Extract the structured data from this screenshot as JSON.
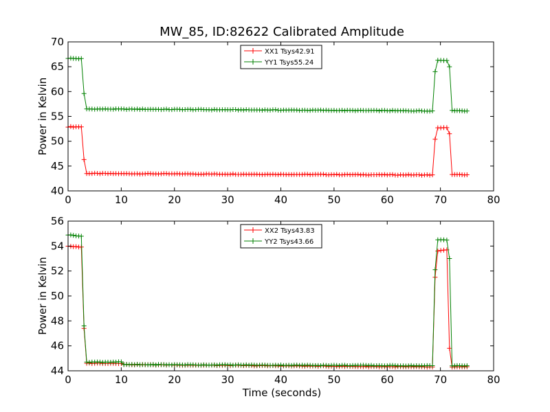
{
  "chart_data": [
    {
      "type": "line",
      "title": "MW_85, ID:82622 Calibrated Amplitude",
      "xlabel": "",
      "ylabel": "Power in Kelvin",
      "xlim": [
        0,
        80
      ],
      "ylim": [
        40,
        70
      ],
      "xticks": [
        "0",
        "10",
        "20",
        "30",
        "40",
        "50",
        "60",
        "70",
        "80"
      ],
      "yticks": [
        "40",
        "45",
        "50",
        "55",
        "60",
        "65",
        "70"
      ],
      "legend_position": "top-center",
      "series": [
        {
          "name": "XX1 Tsys42.91",
          "color": "#ff0000",
          "segments": [
            {
              "t0": 0.0,
              "t1": 2.5,
              "v0": 52.9,
              "v1": 52.9
            },
            {
              "t0": 2.5,
              "t1": 3.0,
              "v0": 52.9,
              "v1": 46.3
            },
            {
              "t0": 3.0,
              "t1": 3.5,
              "v0": 46.3,
              "v1": 43.5
            },
            {
              "t0": 3.5,
              "t1": 68.5,
              "v0": 43.5,
              "v1": 43.2
            },
            {
              "t0": 68.5,
              "t1": 69.0,
              "v0": 43.2,
              "v1": 50.4
            },
            {
              "t0": 69.0,
              "t1": 69.5,
              "v0": 50.4,
              "v1": 52.7
            },
            {
              "t0": 69.5,
              "t1": 71.2,
              "v0": 52.7,
              "v1": 52.7
            },
            {
              "t0": 71.2,
              "t1": 71.7,
              "v0": 52.7,
              "v1": 51.5
            },
            {
              "t0": 71.7,
              "t1": 72.2,
              "v0": 51.5,
              "v1": 43.3
            },
            {
              "t0": 72.2,
              "t1": 75.0,
              "v0": 43.3,
              "v1": 43.2
            }
          ]
        },
        {
          "name": "YY1 Tsys55.24",
          "color": "#008000",
          "segments": [
            {
              "t0": 0.0,
              "t1": 2.5,
              "v0": 66.7,
              "v1": 66.6
            },
            {
              "t0": 2.5,
              "t1": 3.0,
              "v0": 66.6,
              "v1": 59.6
            },
            {
              "t0": 3.0,
              "t1": 3.5,
              "v0": 59.6,
              "v1": 56.5
            },
            {
              "t0": 3.5,
              "t1": 68.5,
              "v0": 56.5,
              "v1": 56.1
            },
            {
              "t0": 68.5,
              "t1": 69.0,
              "v0": 56.1,
              "v1": 64.0
            },
            {
              "t0": 69.0,
              "t1": 69.5,
              "v0": 64.0,
              "v1": 66.3
            },
            {
              "t0": 69.5,
              "t1": 71.2,
              "v0": 66.3,
              "v1": 66.3
            },
            {
              "t0": 71.2,
              "t1": 71.7,
              "v0": 66.3,
              "v1": 65.0
            },
            {
              "t0": 71.7,
              "t1": 72.2,
              "v0": 65.0,
              "v1": 56.2
            },
            {
              "t0": 72.2,
              "t1": 75.0,
              "v0": 56.2,
              "v1": 56.1
            }
          ]
        }
      ]
    },
    {
      "type": "line",
      "title": "",
      "xlabel": "Time (seconds)",
      "ylabel": "Power in Kelvin",
      "xlim": [
        0,
        80
      ],
      "ylim": [
        44,
        56
      ],
      "xticks": [
        "0",
        "10",
        "20",
        "30",
        "40",
        "50",
        "60",
        "70",
        "80"
      ],
      "yticks": [
        "44",
        "46",
        "48",
        "50",
        "52",
        "54",
        "56"
      ],
      "legend_position": "top-center",
      "series": [
        {
          "name": "XX2 Tsys43.83",
          "color": "#ff0000",
          "segments": [
            {
              "t0": 0.0,
              "t1": 2.5,
              "v0": 54.0,
              "v1": 53.9
            },
            {
              "t0": 2.5,
              "t1": 3.0,
              "v0": 53.9,
              "v1": 47.4
            },
            {
              "t0": 3.0,
              "t1": 3.5,
              "v0": 47.4,
              "v1": 44.6
            },
            {
              "t0": 3.5,
              "t1": 10.0,
              "v0": 44.6,
              "v1": 44.6
            },
            {
              "t0": 10.0,
              "t1": 68.5,
              "v0": 44.5,
              "v1": 44.3
            },
            {
              "t0": 68.5,
              "t1": 69.0,
              "v0": 44.3,
              "v1": 51.5
            },
            {
              "t0": 69.0,
              "t1": 69.5,
              "v0": 51.5,
              "v1": 53.6
            },
            {
              "t0": 69.5,
              "t1": 71.2,
              "v0": 53.6,
              "v1": 53.7
            },
            {
              "t0": 71.2,
              "t1": 71.7,
              "v0": 53.7,
              "v1": 45.8
            },
            {
              "t0": 71.7,
              "t1": 72.2,
              "v0": 45.8,
              "v1": 44.3
            },
            {
              "t0": 72.2,
              "t1": 75.0,
              "v0": 44.3,
              "v1": 44.3
            }
          ]
        },
        {
          "name": "YY2 Tsys43.66",
          "color": "#008000",
          "segments": [
            {
              "t0": 0.0,
              "t1": 2.5,
              "v0": 54.9,
              "v1": 54.8
            },
            {
              "t0": 2.5,
              "t1": 3.0,
              "v0": 54.8,
              "v1": 47.6
            },
            {
              "t0": 3.0,
              "t1": 3.5,
              "v0": 47.6,
              "v1": 44.7
            },
            {
              "t0": 3.5,
              "t1": 10.0,
              "v0": 44.7,
              "v1": 44.7
            },
            {
              "t0": 10.0,
              "t1": 68.5,
              "v0": 44.5,
              "v1": 44.4
            },
            {
              "t0": 68.5,
              "t1": 69.0,
              "v0": 44.4,
              "v1": 52.1
            },
            {
              "t0": 69.0,
              "t1": 69.5,
              "v0": 52.1,
              "v1": 54.5
            },
            {
              "t0": 69.5,
              "t1": 71.2,
              "v0": 54.5,
              "v1": 54.5
            },
            {
              "t0": 71.2,
              "t1": 71.7,
              "v0": 54.5,
              "v1": 53.0
            },
            {
              "t0": 71.7,
              "t1": 72.2,
              "v0": 53.0,
              "v1": 44.4
            },
            {
              "t0": 72.2,
              "t1": 75.0,
              "v0": 44.4,
              "v1": 44.4
            }
          ]
        }
      ]
    }
  ]
}
